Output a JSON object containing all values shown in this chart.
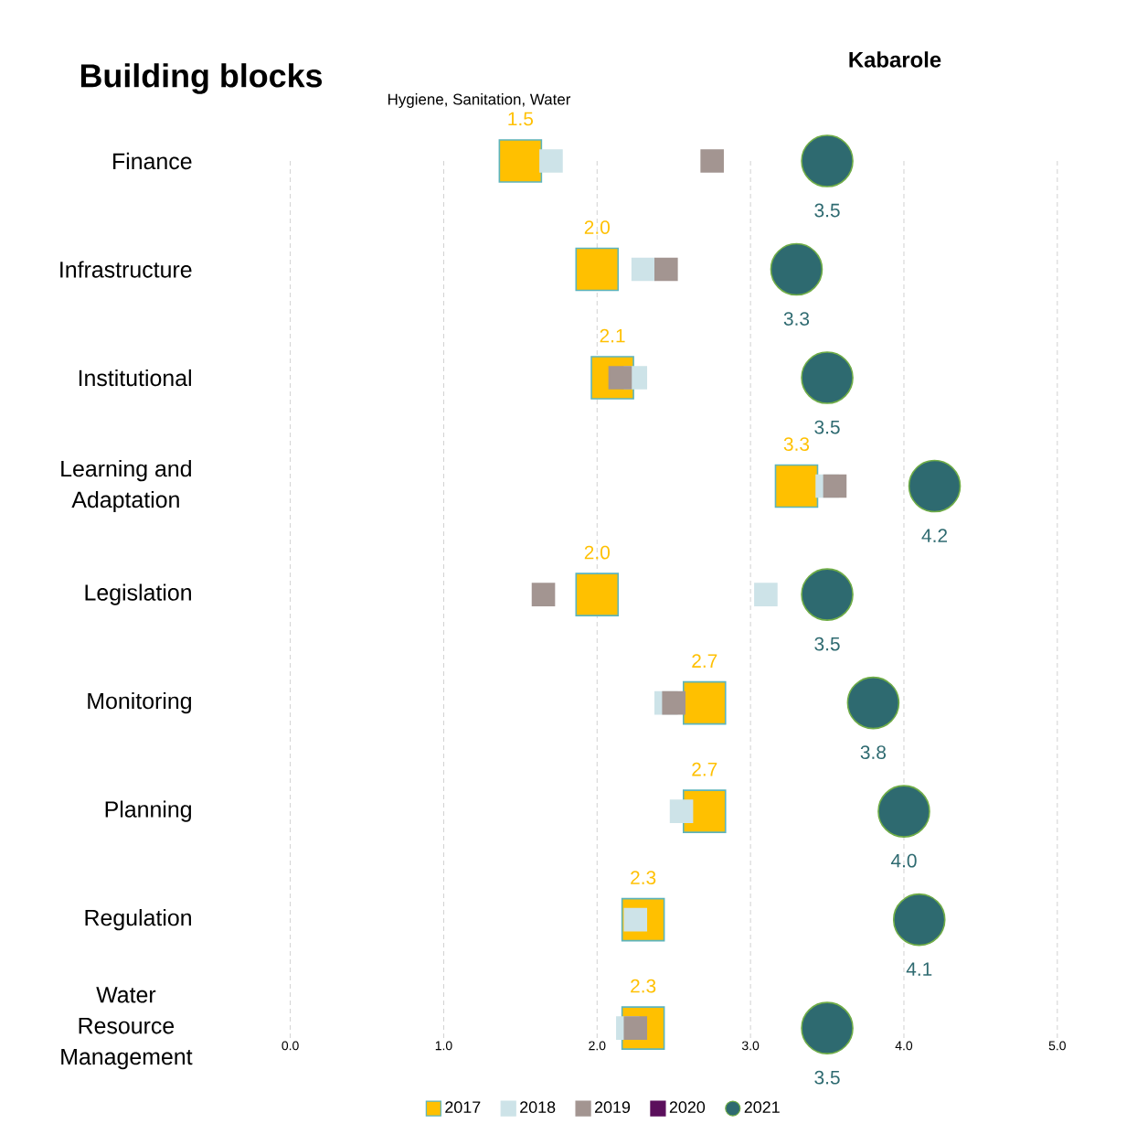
{
  "chart_data": {
    "type": "scatter",
    "orientation": "horizontal",
    "title": "Kabarole",
    "subtitle": "Hygiene, Sanitation, Water",
    "ylabel": "Building blocks",
    "categories": [
      "Finance",
      "Infrastructure",
      "Institutional",
      "Learning and Adaptation",
      "Legislation",
      "Monitoring",
      "Planning",
      "Regulation",
      "Water Resource Management"
    ],
    "xlim": [
      0,
      5
    ],
    "xticks": [
      {
        "value": 0,
        "label": "0.0"
      },
      {
        "value": 1,
        "label": "1.0"
      },
      {
        "value": 2,
        "label": "2.0"
      },
      {
        "value": 3,
        "label": "3.0"
      },
      {
        "value": 4,
        "label": "4.0"
      },
      {
        "value": 5,
        "label": "5.0"
      }
    ],
    "grid": "x",
    "legend": "bottom",
    "series": [
      {
        "name": "2017",
        "color": "#FFC000",
        "marker": "square",
        "values": [
          1.5,
          2.0,
          2.1,
          3.3,
          2.0,
          2.7,
          2.7,
          2.3,
          2.3
        ],
        "value_labels": [
          "1.5",
          "2.0",
          "2.1",
          "3.3",
          "2.0",
          "2.7",
          "2.7",
          "2.3",
          "2.3"
        ]
      },
      {
        "name": "2018",
        "color": "#CDE3E8",
        "marker": "square",
        "values": [
          1.7,
          2.3,
          2.25,
          3.5,
          3.1,
          2.45,
          2.55,
          2.25,
          2.2
        ]
      },
      {
        "name": "2019",
        "color": "#A39591",
        "marker": "square",
        "values": [
          2.75,
          2.45,
          2.15,
          3.55,
          1.65,
          2.5,
          null,
          null,
          2.25
        ]
      },
      {
        "name": "2020",
        "color": "#5B0F5C",
        "marker": "square",
        "values": [
          null,
          null,
          null,
          null,
          null,
          null,
          null,
          null,
          null
        ]
      },
      {
        "name": "2021",
        "color": "#2E6A70",
        "marker": "circle",
        "values": [
          3.5,
          3.3,
          3.5,
          4.2,
          3.5,
          3.8,
          4.0,
          4.1,
          3.5
        ],
        "value_labels": [
          "3.5",
          "3.3",
          "3.5",
          "4.2",
          "3.5",
          "3.8",
          "4.0",
          "4.1",
          "3.5"
        ]
      }
    ]
  }
}
